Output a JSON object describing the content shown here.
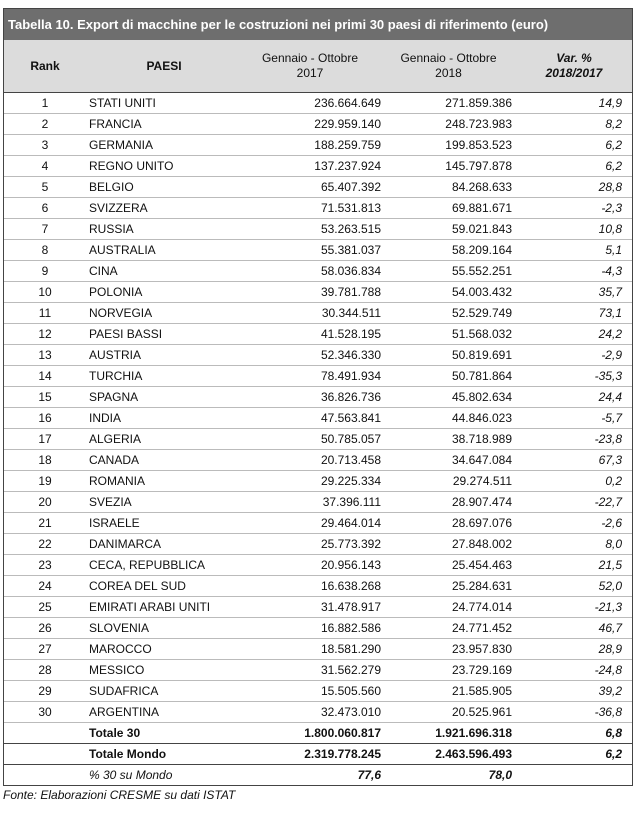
{
  "title": "Tabella 10. Export di macchine per le costruzioni nei primi 30 paesi di riferimento (euro)",
  "headers": {
    "rank": "Rank",
    "country": "PAESI",
    "y2017_a": "Gennaio - Ottobre",
    "y2017_b": "2017",
    "y2018_a": "Gennaio - Ottobre",
    "y2018_b": "2018",
    "var_a": "Var. %",
    "var_b": "2018/2017"
  },
  "rows": [
    [
      "1",
      "STATI UNITI",
      "236.664.649",
      "271.859.386",
      "14,9"
    ],
    [
      "2",
      "FRANCIA",
      "229.959.140",
      "248.723.983",
      "8,2"
    ],
    [
      "3",
      "GERMANIA",
      "188.259.759",
      "199.853.523",
      "6,2"
    ],
    [
      "4",
      "REGNO UNITO",
      "137.237.924",
      "145.797.878",
      "6,2"
    ],
    [
      "5",
      "BELGIO",
      "65.407.392",
      "84.268.633",
      "28,8"
    ],
    [
      "6",
      "SVIZZERA",
      "71.531.813",
      "69.881.671",
      "-2,3"
    ],
    [
      "7",
      "RUSSIA",
      "53.263.515",
      "59.021.843",
      "10,8"
    ],
    [
      "8",
      "AUSTRALIA",
      "55.381.037",
      "58.209.164",
      "5,1"
    ],
    [
      "9",
      "CINA",
      "58.036.834",
      "55.552.251",
      "-4,3"
    ],
    [
      "10",
      "POLONIA",
      "39.781.788",
      "54.003.432",
      "35,7"
    ],
    [
      "11",
      "NORVEGIA",
      "30.344.511",
      "52.529.749",
      "73,1"
    ],
    [
      "12",
      "PAESI BASSI",
      "41.528.195",
      "51.568.032",
      "24,2"
    ],
    [
      "13",
      "AUSTRIA",
      "52.346.330",
      "50.819.691",
      "-2,9"
    ],
    [
      "14",
      "TURCHIA",
      "78.491.934",
      "50.781.864",
      "-35,3"
    ],
    [
      "15",
      "SPAGNA",
      "36.826.736",
      "45.802.634",
      "24,4"
    ],
    [
      "16",
      "INDIA",
      "47.563.841",
      "44.846.023",
      "-5,7"
    ],
    [
      "17",
      "ALGERIA",
      "50.785.057",
      "38.718.989",
      "-23,8"
    ],
    [
      "18",
      "CANADA",
      "20.713.458",
      "34.647.084",
      "67,3"
    ],
    [
      "19",
      "ROMANIA",
      "29.225.334",
      "29.274.511",
      "0,2"
    ],
    [
      "20",
      "SVEZIA",
      "37.396.111",
      "28.907.474",
      "-22,7"
    ],
    [
      "21",
      "ISRAELE",
      "29.464.014",
      "28.697.076",
      "-2,6"
    ],
    [
      "22",
      "DANIMARCA",
      "25.773.392",
      "27.848.002",
      "8,0"
    ],
    [
      "23",
      "CECA, REPUBBLICA",
      "20.956.143",
      "25.454.463",
      "21,5"
    ],
    [
      "24",
      "COREA DEL SUD",
      "16.638.268",
      "25.284.631",
      "52,0"
    ],
    [
      "25",
      "EMIRATI ARABI UNITI",
      "31.478.917",
      "24.774.014",
      "-21,3"
    ],
    [
      "26",
      "SLOVENIA",
      "16.882.586",
      "24.771.452",
      "46,7"
    ],
    [
      "27",
      "MAROCCO",
      "18.581.290",
      "23.957.830",
      "28,9"
    ],
    [
      "28",
      "MESSICO",
      "31.562.279",
      "23.729.169",
      "-24,8"
    ],
    [
      "29",
      "SUDAFRICA",
      "15.505.560",
      "21.585.905",
      "39,2"
    ],
    [
      "30",
      "ARGENTINA",
      "32.473.010",
      "20.525.961",
      "-36,8"
    ]
  ],
  "totals": [
    {
      "label": "Totale 30",
      "y2017": "1.800.060.817",
      "y2018": "1.921.696.318",
      "var": "6,8"
    },
    {
      "label": "Totale Mondo",
      "y2017": "2.319.778.245",
      "y2018": "2.463.596.493",
      "var": "6,2"
    }
  ],
  "share": {
    "label": "% 30 su Mondo",
    "y2017": "77,6",
    "y2018": "78,0"
  },
  "source": "Fonte: Elaborazioni CRESME  su dati ISTAT"
}
